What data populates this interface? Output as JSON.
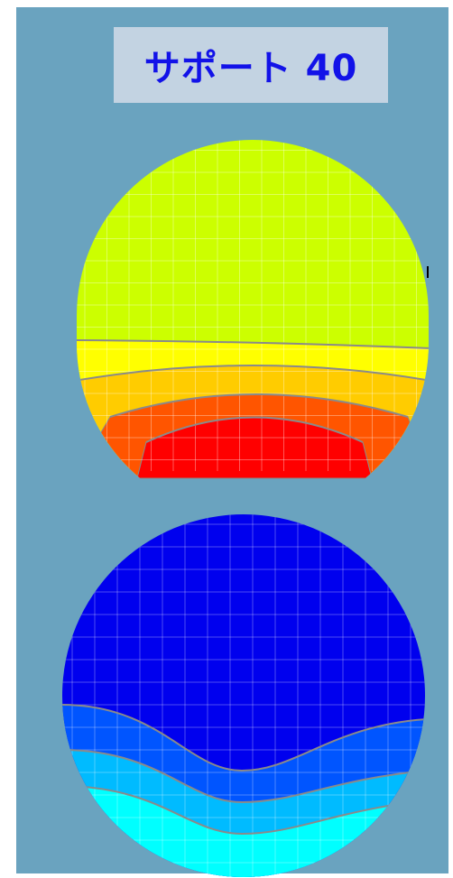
{
  "title": "サポート 40",
  "top_map": {
    "colors": [
      "#ccff00",
      "#ffff00",
      "#ffcc00",
      "#ff5500",
      "#ff0000"
    ],
    "contour_color": "#8a8a8a"
  },
  "bottom_map": {
    "colors": [
      "#0000ee",
      "#0055ff",
      "#00bbff",
      "#00ffff"
    ],
    "contour_color": "#8a8a8a"
  },
  "grid": true
}
